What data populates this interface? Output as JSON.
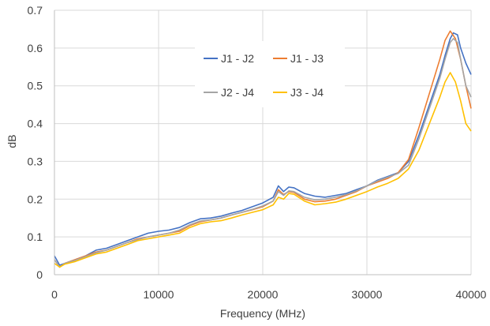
{
  "chart_data": {
    "type": "line",
    "title": "",
    "xlabel": "Frequency (MHz)",
    "ylabel": "dB",
    "xlim": [
      0,
      40000
    ],
    "ylim": [
      0,
      0.7
    ],
    "x_ticks": [
      0,
      10000,
      20000,
      30000,
      40000
    ],
    "y_ticks": [
      0,
      0.1,
      0.2,
      0.3,
      0.4,
      0.5,
      0.6,
      0.7
    ],
    "x_tick_labels": [
      "0",
      "10000",
      "20000",
      "30000",
      "40000"
    ],
    "y_tick_labels": [
      "0",
      "0.1",
      "0.2",
      "0.3",
      "0.4",
      "0.5",
      "0.6",
      "0.7"
    ],
    "grid": true,
    "legend_position": "top-center",
    "series": [
      {
        "name": "J1 - J2",
        "color": "#4472c4",
        "points": [
          [
            0,
            0.05
          ],
          [
            500,
            0.025
          ],
          [
            1000,
            0.03
          ],
          [
            2000,
            0.04
          ],
          [
            3000,
            0.05
          ],
          [
            4000,
            0.065
          ],
          [
            5000,
            0.07
          ],
          [
            6000,
            0.08
          ],
          [
            7000,
            0.09
          ],
          [
            8000,
            0.1
          ],
          [
            9000,
            0.11
          ],
          [
            10000,
            0.115
          ],
          [
            11000,
            0.118
          ],
          [
            12000,
            0.125
          ],
          [
            13000,
            0.138
          ],
          [
            14000,
            0.148
          ],
          [
            15000,
            0.15
          ],
          [
            16000,
            0.155
          ],
          [
            17000,
            0.163
          ],
          [
            18000,
            0.17
          ],
          [
            19000,
            0.18
          ],
          [
            20000,
            0.19
          ],
          [
            21000,
            0.205
          ],
          [
            21500,
            0.235
          ],
          [
            22000,
            0.22
          ],
          [
            22500,
            0.232
          ],
          [
            23000,
            0.23
          ],
          [
            24000,
            0.215
          ],
          [
            25000,
            0.208
          ],
          [
            26000,
            0.205
          ],
          [
            27000,
            0.21
          ],
          [
            28000,
            0.215
          ],
          [
            29000,
            0.225
          ],
          [
            30000,
            0.235
          ],
          [
            31000,
            0.25
          ],
          [
            32000,
            0.26
          ],
          [
            33000,
            0.27
          ],
          [
            34000,
            0.3
          ],
          [
            35000,
            0.37
          ],
          [
            36000,
            0.45
          ],
          [
            37000,
            0.53
          ],
          [
            37500,
            0.58
          ],
          [
            38000,
            0.625
          ],
          [
            38300,
            0.64
          ],
          [
            38700,
            0.635
          ],
          [
            39000,
            0.6
          ],
          [
            39500,
            0.56
          ],
          [
            40000,
            0.53
          ]
        ]
      },
      {
        "name": "J1 - J3",
        "color": "#ed7d31",
        "points": [
          [
            0,
            0.04
          ],
          [
            500,
            0.02
          ],
          [
            1000,
            0.03
          ],
          [
            2000,
            0.04
          ],
          [
            3000,
            0.05
          ],
          [
            4000,
            0.06
          ],
          [
            5000,
            0.065
          ],
          [
            6000,
            0.075
          ],
          [
            7000,
            0.085
          ],
          [
            8000,
            0.095
          ],
          [
            9000,
            0.1
          ],
          [
            10000,
            0.105
          ],
          [
            11000,
            0.11
          ],
          [
            12000,
            0.115
          ],
          [
            13000,
            0.13
          ],
          [
            14000,
            0.14
          ],
          [
            15000,
            0.145
          ],
          [
            16000,
            0.15
          ],
          [
            17000,
            0.158
          ],
          [
            18000,
            0.165
          ],
          [
            19000,
            0.172
          ],
          [
            20000,
            0.18
          ],
          [
            21000,
            0.195
          ],
          [
            21500,
            0.225
          ],
          [
            22000,
            0.212
          ],
          [
            22500,
            0.22
          ],
          [
            23000,
            0.218
          ],
          [
            24000,
            0.2
          ],
          [
            25000,
            0.193
          ],
          [
            26000,
            0.195
          ],
          [
            27000,
            0.2
          ],
          [
            28000,
            0.21
          ],
          [
            29000,
            0.22
          ],
          [
            30000,
            0.235
          ],
          [
            31000,
            0.245
          ],
          [
            32000,
            0.255
          ],
          [
            33000,
            0.27
          ],
          [
            34000,
            0.305
          ],
          [
            35000,
            0.39
          ],
          [
            36000,
            0.48
          ],
          [
            37000,
            0.57
          ],
          [
            37500,
            0.62
          ],
          [
            38000,
            0.645
          ],
          [
            38500,
            0.625
          ],
          [
            39000,
            0.57
          ],
          [
            39500,
            0.5
          ],
          [
            40000,
            0.44
          ]
        ]
      },
      {
        "name": "J2 - J4",
        "color": "#a5a5a5",
        "points": [
          [
            0,
            0.04
          ],
          [
            500,
            0.02
          ],
          [
            1000,
            0.03
          ],
          [
            2000,
            0.038
          ],
          [
            3000,
            0.048
          ],
          [
            4000,
            0.058
          ],
          [
            5000,
            0.065
          ],
          [
            6000,
            0.075
          ],
          [
            7000,
            0.085
          ],
          [
            8000,
            0.093
          ],
          [
            9000,
            0.1
          ],
          [
            10000,
            0.105
          ],
          [
            11000,
            0.11
          ],
          [
            12000,
            0.118
          ],
          [
            13000,
            0.132
          ],
          [
            14000,
            0.142
          ],
          [
            15000,
            0.145
          ],
          [
            16000,
            0.15
          ],
          [
            17000,
            0.158
          ],
          [
            18000,
            0.165
          ],
          [
            19000,
            0.173
          ],
          [
            20000,
            0.182
          ],
          [
            21000,
            0.195
          ],
          [
            21500,
            0.22
          ],
          [
            22000,
            0.21
          ],
          [
            22500,
            0.222
          ],
          [
            23000,
            0.22
          ],
          [
            24000,
            0.205
          ],
          [
            25000,
            0.198
          ],
          [
            26000,
            0.2
          ],
          [
            27000,
            0.205
          ],
          [
            28000,
            0.212
          ],
          [
            29000,
            0.222
          ],
          [
            30000,
            0.235
          ],
          [
            31000,
            0.248
          ],
          [
            32000,
            0.258
          ],
          [
            33000,
            0.268
          ],
          [
            34000,
            0.29
          ],
          [
            35000,
            0.36
          ],
          [
            36000,
            0.44
          ],
          [
            37000,
            0.52
          ],
          [
            37500,
            0.57
          ],
          [
            38000,
            0.615
          ],
          [
            38300,
            0.625
          ],
          [
            38700,
            0.615
          ],
          [
            39000,
            0.57
          ],
          [
            39500,
            0.5
          ],
          [
            40000,
            0.47
          ]
        ]
      },
      {
        "name": "J3 - J4",
        "color": "#ffc000",
        "points": [
          [
            0,
            0.03
          ],
          [
            500,
            0.02
          ],
          [
            1000,
            0.028
          ],
          [
            2000,
            0.035
          ],
          [
            3000,
            0.045
          ],
          [
            4000,
            0.055
          ],
          [
            5000,
            0.06
          ],
          [
            6000,
            0.07
          ],
          [
            7000,
            0.08
          ],
          [
            8000,
            0.09
          ],
          [
            9000,
            0.095
          ],
          [
            10000,
            0.1
          ],
          [
            11000,
            0.105
          ],
          [
            12000,
            0.11
          ],
          [
            13000,
            0.125
          ],
          [
            14000,
            0.135
          ],
          [
            15000,
            0.14
          ],
          [
            16000,
            0.143
          ],
          [
            17000,
            0.15
          ],
          [
            18000,
            0.158
          ],
          [
            19000,
            0.165
          ],
          [
            20000,
            0.172
          ],
          [
            21000,
            0.185
          ],
          [
            21500,
            0.205
          ],
          [
            22000,
            0.2
          ],
          [
            22500,
            0.215
          ],
          [
            23000,
            0.213
          ],
          [
            24000,
            0.195
          ],
          [
            25000,
            0.185
          ],
          [
            26000,
            0.188
          ],
          [
            27000,
            0.192
          ],
          [
            28000,
            0.2
          ],
          [
            29000,
            0.21
          ],
          [
            30000,
            0.22
          ],
          [
            31000,
            0.232
          ],
          [
            32000,
            0.242
          ],
          [
            33000,
            0.255
          ],
          [
            34000,
            0.28
          ],
          [
            35000,
            0.33
          ],
          [
            36000,
            0.4
          ],
          [
            37000,
            0.47
          ],
          [
            37500,
            0.51
          ],
          [
            38000,
            0.535
          ],
          [
            38500,
            0.51
          ],
          [
            39000,
            0.46
          ],
          [
            39500,
            0.4
          ],
          [
            40000,
            0.38
          ]
        ]
      }
    ]
  }
}
